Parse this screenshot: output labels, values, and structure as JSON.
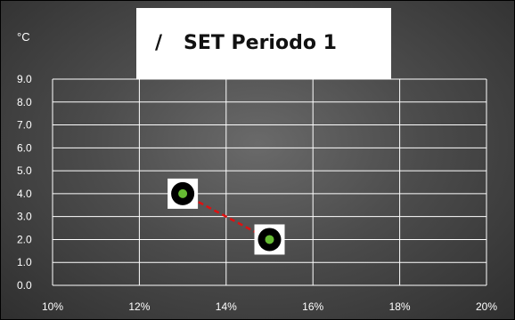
{
  "chart_data": {
    "type": "scatter",
    "title": "SET Periodo 1",
    "title_prefix": "/",
    "ylabel": "°C",
    "xlim": [
      0.1,
      0.2
    ],
    "ylim": [
      0.0,
      9.0
    ],
    "x_ticks": [
      0.1,
      0.12,
      0.14,
      0.16,
      0.18,
      0.2
    ],
    "x_tick_labels": [
      "10%",
      "12%",
      "14%",
      "16%",
      "18%",
      "20%"
    ],
    "y_ticks": [
      0,
      1,
      2,
      3,
      4,
      5,
      6,
      7,
      8,
      9
    ],
    "y_tick_labels": [
      "0.0",
      "1.0",
      "2.0",
      "3.0",
      "4.0",
      "5.0",
      "6.0",
      "7.0",
      "8.0",
      "9.0"
    ],
    "grid": true,
    "series": [
      {
        "points": [
          {
            "x": 0.13,
            "y": 4.0
          },
          {
            "x": 0.15,
            "y": 2.0
          }
        ],
        "line_color": "#e01010",
        "line_style": "dashed",
        "marker_color": "#66bb33"
      }
    ]
  }
}
